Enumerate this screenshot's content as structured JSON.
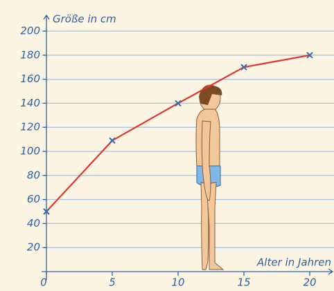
{
  "chart_data": {
    "type": "line",
    "y_label": "Größe in cm",
    "x_label": "Alter in Jahren",
    "x": [
      0,
      5,
      10,
      15,
      20
    ],
    "values": [
      50,
      109,
      140,
      170,
      180
    ],
    "color": "#e2342c",
    "marker_color": "#3468a8",
    "xlim": [
      0,
      21.7
    ],
    "ylim": [
      0,
      213
    ],
    "xticks": [
      0,
      5,
      10,
      15,
      20
    ],
    "yticks": [
      20,
      40,
      60,
      80,
      100,
      120,
      140,
      160,
      180,
      200
    ],
    "grid": true
  }
}
